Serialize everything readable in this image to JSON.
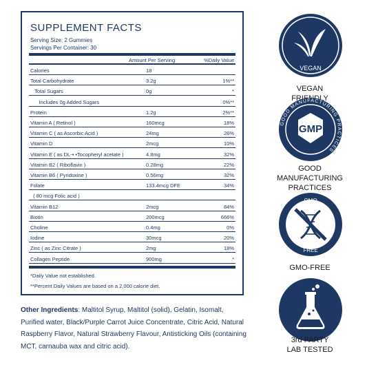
{
  "facts": {
    "title": "SUPPLEMENT FACTS",
    "serving_size": "Serving Size: 2 Gummies",
    "servings_per_container": "Servings Per Container: 30",
    "col_amount": "Amount Per Serving",
    "col_dv": "%Daily Value",
    "rows": [
      {
        "name": "Calories",
        "amount": "18",
        "dv": ""
      },
      {
        "name": "Total Carbohydrate",
        "amount": "3.2g",
        "dv": "1%**"
      },
      {
        "name": "   Total Sugars",
        "amount": "0g",
        "dv": "*"
      },
      {
        "name": "      Includes 0g Added Sugars",
        "amount": "",
        "dv": "0%**"
      },
      {
        "name": "Protein",
        "amount": "1.2g",
        "dv": "2%**"
      },
      {
        "name": "Vitamin A ( Retinol )",
        "amount": "160mcg",
        "dv": "18%"
      },
      {
        "name": "Vitamin C ( as Ascorbic Acid )",
        "amount": "24mg",
        "dv": "26%"
      },
      {
        "name": "Vitamin D",
        "amount": "2mcg",
        "dv": "10%"
      },
      {
        "name": "Vitamin E ( as DL-• •Tocopheryl acetate )",
        "amount": "4.8mg",
        "dv": "32%"
      },
      {
        "name": "Vitamin B2 ( Riboflavin )",
        "amount": "0.28mg",
        "dv": "22%"
      },
      {
        "name": "Vitamin B6 ( Pyridoxine )",
        "amount": "0.56mg",
        "dv": "32%"
      },
      {
        "name": "Folate",
        "amount": "133.4mcg DFE",
        "dv": "34%"
      },
      {
        "name": "  ( 80 mcg Folic acid )",
        "amount": "",
        "dv": ""
      },
      {
        "name": "Vitamin B12",
        "amount": "2mcg",
        "dv": "84%"
      },
      {
        "name": "Biotin",
        "amount": "200mcg",
        "dv": "666%"
      },
      {
        "name": "Choline",
        "amount": "0.4mg",
        "dv": "0%"
      },
      {
        "name": "Iodine",
        "amount": "30mcg",
        "dv": "20%"
      },
      {
        "name": "Zinc ( as Zinc Citrate )",
        "amount": "2mg",
        "dv": "18%"
      },
      {
        "name": "Collagen Peptide",
        "amount": "900mg",
        "dv": "*"
      }
    ],
    "note1": "*Daily Value not established.",
    "note2": "**Percent Daily Values are based on a 2,000 calorie diet."
  },
  "ingredients": {
    "label": "Other Ingredients",
    "text": ": Maltitol Syrup, Maltitol (solid), Gelatin, Isomalt, Purified water, Black/Purple Carrot Juice Concentrate, Citric Acid, Natural Raspberry Flavor, Natural Strawberry Flavour, Antisticking Oils (containing MCT, carnauba wax and citric acid)."
  },
  "badges": {
    "vegan": {
      "icon": "leaf-icon",
      "ring_text": "VEGAN",
      "caption1": "VEGAN",
      "caption2": "FRIENDLY"
    },
    "gmp": {
      "icon": "gmp-seal-icon",
      "ring_text": "GOOD MANUFACTURING PRACTICES",
      "seal_text": "GMP",
      "caption1": "GOOD",
      "caption2": "MANUFACTURING",
      "caption3": "PRACTICES"
    },
    "gmo": {
      "icon": "dna-crossed-icon",
      "top_text": "GMO",
      "bottom_text": "FREE",
      "caption1": "GMO-FREE"
    },
    "lab": {
      "icon": "flask-icon",
      "caption1": "3rd  PARTY",
      "caption2": "LAB TESTED"
    }
  },
  "colors": {
    "navy": "#1f3863"
  }
}
